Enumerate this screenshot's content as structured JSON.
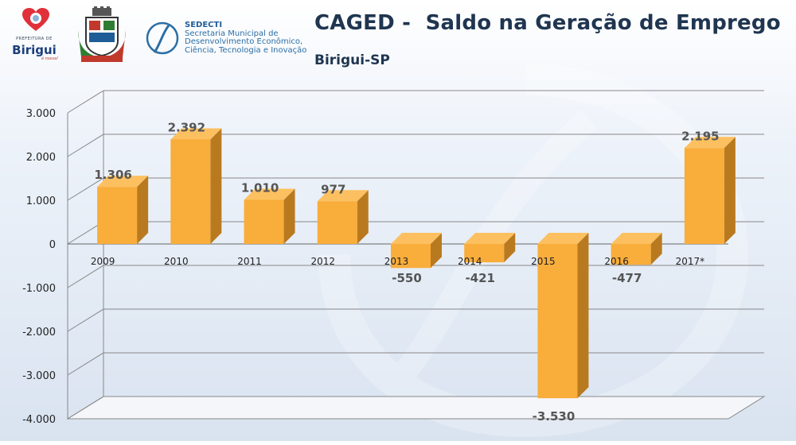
{
  "header": {
    "title": "CAGED -  Saldo na Geração de Emprego",
    "subtitle": "Birigui-SP",
    "logo_birigui": {
      "prefeitura": "PREFEITURA DE",
      "city": "Birigui",
      "tagline": "é nossa!"
    },
    "sedecti": {
      "name": "SEDECTI",
      "line1": "Secretaria Municipal de",
      "line2": "Desenvolvimento Econômico,",
      "line3": "Ciência, Tecnologia e Inovação"
    }
  },
  "colors": {
    "bar_front": "#f9ad3a",
    "bar_side": "#b97a1f",
    "bar_top": "#fcc060",
    "grid": "#888888",
    "title": "#1f3550"
  },
  "chart_data": {
    "type": "bar",
    "categories": [
      "2009",
      "2010",
      "2011",
      "2012",
      "2013",
      "2014",
      "2015",
      "2016",
      "2017*"
    ],
    "values": [
      1306,
      2392,
      1010,
      977,
      -550,
      -421,
      -3530,
      -477,
      2195
    ],
    "value_labels": [
      "1.306",
      "2.392",
      "1.010",
      "977",
      "-550",
      "-421",
      "-3.530",
      "-477",
      "2.195"
    ],
    "yticks": [
      3000,
      2000,
      1000,
      0,
      -1000,
      -2000,
      -3000,
      -4000
    ],
    "ytick_labels": [
      "3.000",
      "2.000",
      "1.000",
      "0",
      "-1.000",
      "-2.000",
      "-3.000",
      "-4.000"
    ],
    "ylim": [
      -4000,
      3000
    ],
    "grid": true,
    "style": "3d-columns"
  }
}
